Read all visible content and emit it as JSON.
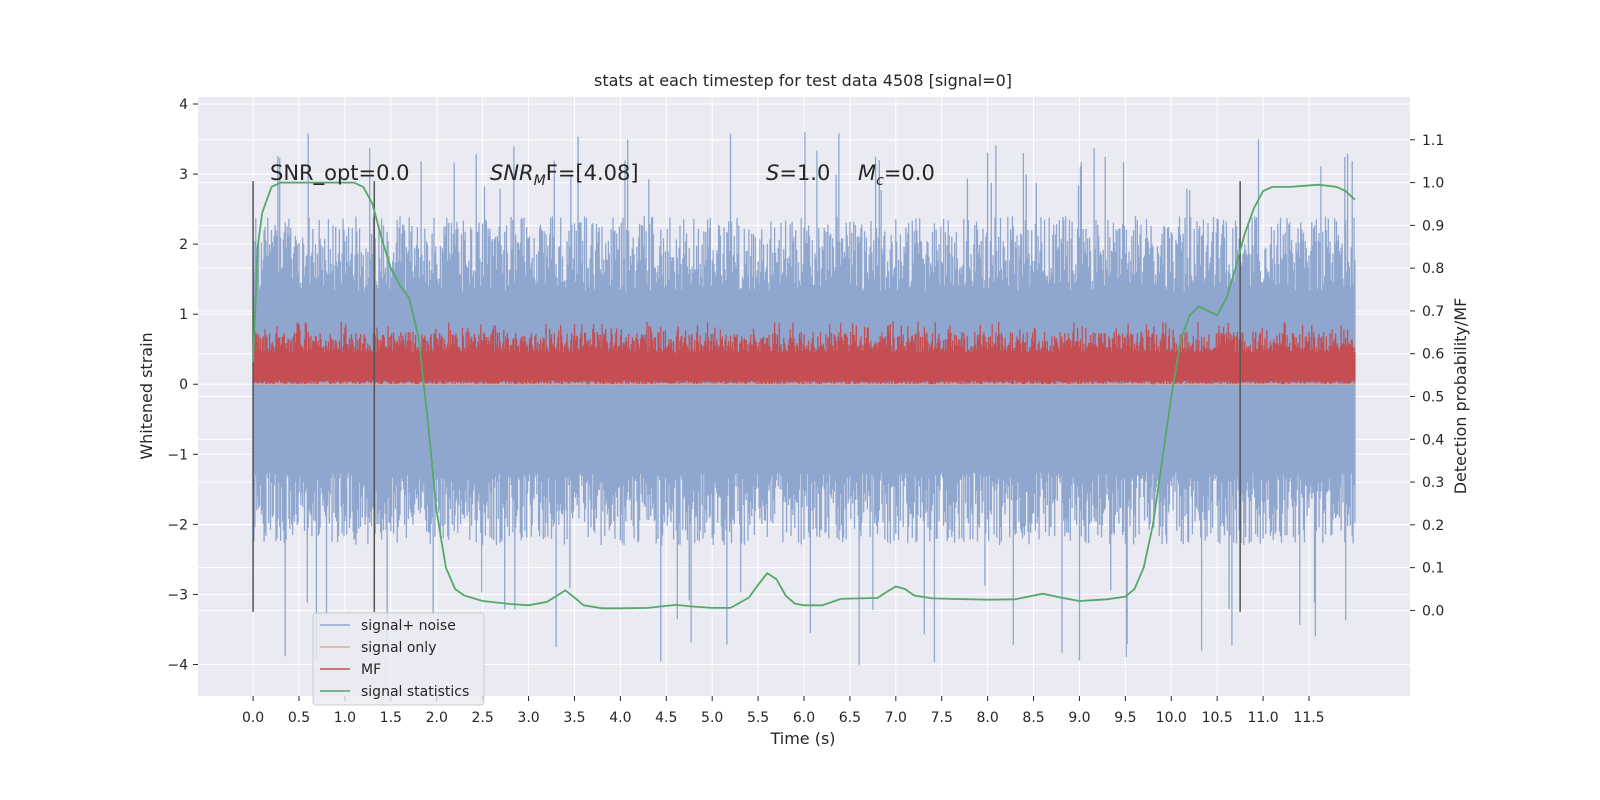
{
  "chart_data": {
    "type": "line",
    "title": "stats at each timestep for test data 4508 [signal=0]",
    "xlabel": "Time (s)",
    "ylabel": "Whitened strain",
    "ylabel_right": "Detection probability/MF",
    "xlim": [
      -0.6,
      12.6
    ],
    "ylim": [
      -4.45,
      4.1
    ],
    "ylim_right": [
      -0.2,
      1.2
    ],
    "x_ticks": [
      "0.0",
      "0.5",
      "1.0",
      "1.5",
      "2.0",
      "2.5",
      "3.0",
      "3.5",
      "4.0",
      "4.5",
      "5.0",
      "5.5",
      "6.0",
      "6.5",
      "7.0",
      "7.5",
      "8.0",
      "8.5",
      "9.0",
      "9.5",
      "10.0",
      "10.5",
      "11.0",
      "11.5"
    ],
    "y_ticks": [
      "4",
      "3",
      "2",
      "1",
      "0",
      "−2",
      "−3",
      "−4"
    ],
    "y_ticks_values": [
      4,
      3,
      2,
      1,
      0,
      -2,
      -3,
      -4
    ],
    "y_ticks_extra": [
      {
        "value": -1,
        "label": "−1"
      }
    ],
    "y_right_ticks": [
      "1.1",
      "1.0",
      "0.9",
      "0.8",
      "0.7",
      "0.6",
      "0.5",
      "0.4",
      "0.3",
      "0.2",
      "0.1",
      "0.0"
    ],
    "y_right_ticks_values": [
      1.1,
      1.0,
      0.9,
      0.8,
      0.7,
      0.6,
      0.5,
      0.4,
      0.3,
      0.2,
      0.1,
      0.0
    ],
    "grid": true,
    "legend_position": "lower-left",
    "annotations": {
      "snr_opt": "SNR_opt=0.0",
      "snr_mf_main": "SNR",
      "snr_mf_sub": "M",
      "snr_mf_rest": "F=[4.08]",
      "s_label": "S",
      "s_rest": "=1.0",
      "mc_label": "M",
      "mc_sub": "c",
      "mc_rest": "=0.0"
    },
    "vertical_lines_x": [
      0.0,
      1.32,
      10.75
    ],
    "series": [
      {
        "name": "signal+ noise",
        "color": "#8fa6cf",
        "kind": "noise",
        "x_range": [
          0.0,
          12.0
        ],
        "typical_range": [
          -2.3,
          2.4
        ],
        "extremes": [
          -4.05,
          3.62
        ]
      },
      {
        "name": "signal only",
        "color": "#e8a98f",
        "kind": "flat",
        "x_range": [
          0.0,
          12.0
        ],
        "value": 0.0
      },
      {
        "name": "MF",
        "color": "#c44e52",
        "kind": "band",
        "x_range": [
          0.0,
          12.0
        ],
        "range": [
          0.0,
          0.9
        ]
      },
      {
        "name": "signal statistics",
        "color": "#55a868",
        "kind": "line",
        "axis": "right",
        "x": [
          0.0,
          0.05,
          0.1,
          0.2,
          0.3,
          0.5,
          0.8,
          1.0,
          1.1,
          1.2,
          1.3,
          1.4,
          1.5,
          1.6,
          1.7,
          1.8,
          1.9,
          2.0,
          2.1,
          2.2,
          2.3,
          2.5,
          2.8,
          3.0,
          3.2,
          3.3,
          3.4,
          3.5,
          3.6,
          3.8,
          4.0,
          4.3,
          4.6,
          4.8,
          5.0,
          5.2,
          5.4,
          5.5,
          5.6,
          5.7,
          5.8,
          5.9,
          6.0,
          6.2,
          6.4,
          6.6,
          6.8,
          6.9,
          7.0,
          7.1,
          7.2,
          7.4,
          7.6,
          8.0,
          8.3,
          8.6,
          8.8,
          9.0,
          9.3,
          9.5,
          9.6,
          9.7,
          9.8,
          9.9,
          10.0,
          10.1,
          10.2,
          10.3,
          10.4,
          10.5,
          10.6,
          10.7,
          10.8,
          10.9,
          11.0,
          11.1,
          11.3,
          11.6,
          11.8,
          11.9,
          12.0
        ],
        "y": [
          0.58,
          0.85,
          0.93,
          0.99,
          1.0,
          1.0,
          1.0,
          1.0,
          1.0,
          0.99,
          0.95,
          0.87,
          0.8,
          0.76,
          0.73,
          0.64,
          0.45,
          0.23,
          0.1,
          0.05,
          0.035,
          0.022,
          0.015,
          0.012,
          0.02,
          0.033,
          0.047,
          0.03,
          0.012,
          0.005,
          0.005,
          0.006,
          0.013,
          0.009,
          0.006,
          0.006,
          0.03,
          0.06,
          0.087,
          0.073,
          0.035,
          0.016,
          0.012,
          0.012,
          0.027,
          0.028,
          0.029,
          0.043,
          0.056,
          0.05,
          0.035,
          0.028,
          0.027,
          0.025,
          0.026,
          0.039,
          0.03,
          0.022,
          0.026,
          0.032,
          0.05,
          0.1,
          0.2,
          0.35,
          0.5,
          0.63,
          0.69,
          0.71,
          0.7,
          0.69,
          0.73,
          0.8,
          0.88,
          0.94,
          0.98,
          0.99,
          0.99,
          0.995,
          0.99,
          0.98,
          0.96
        ]
      }
    ]
  }
}
